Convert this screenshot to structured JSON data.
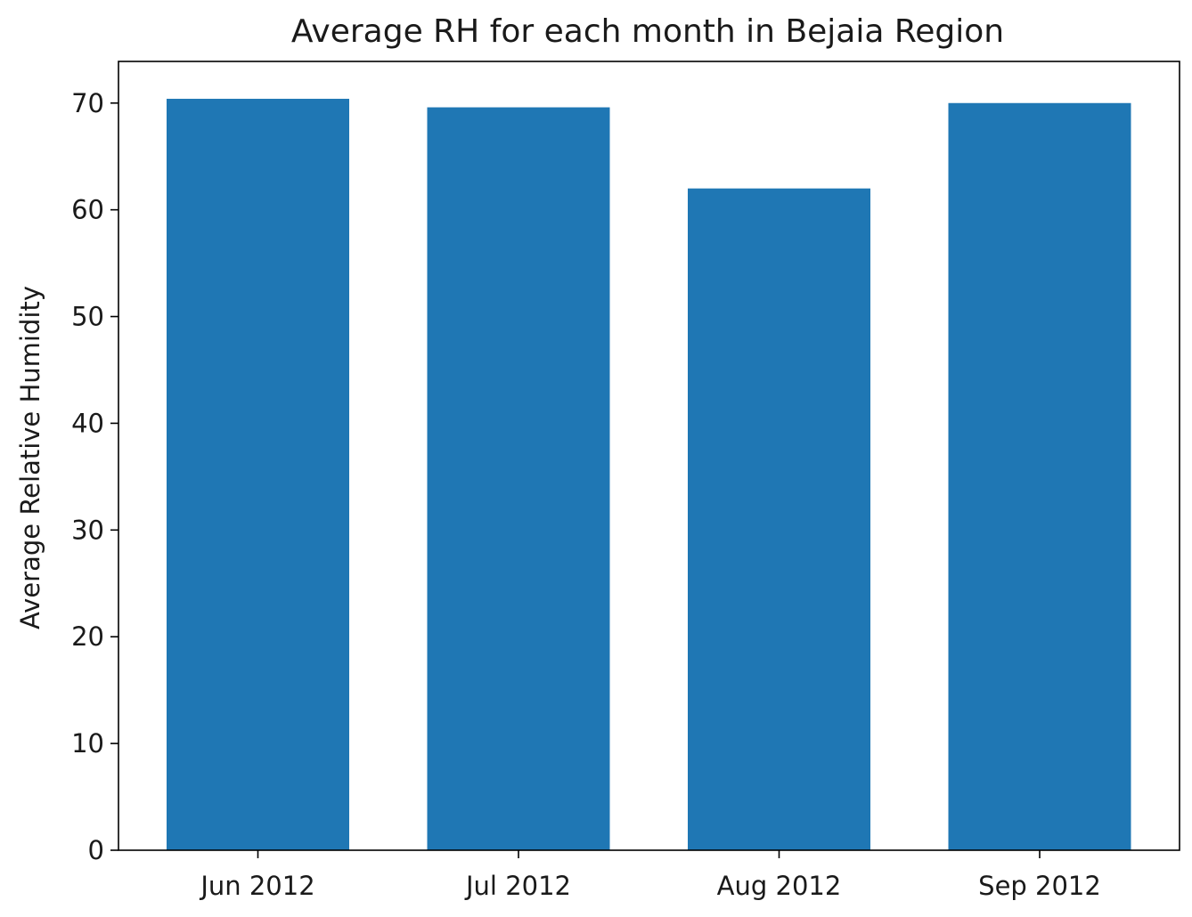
{
  "chart_data": {
    "type": "bar",
    "title": "Average RH for each month in Bejaia Region",
    "xlabel": "",
    "ylabel": "Average Relative Humidity",
    "categories": [
      "Jun 2012",
      "Jul 2012",
      "Aug 2012",
      "Sep 2012"
    ],
    "series": [
      {
        "values": [
          70.4,
          69.6,
          62.0,
          70.0
        ]
      }
    ],
    "ylim": [
      0,
      73.9
    ],
    "yticks": [
      "0",
      "10",
      "20",
      "30",
      "40",
      "50",
      "60",
      "70"
    ],
    "grid": false,
    "legend": "none",
    "bar_color": "#1f77b4"
  }
}
